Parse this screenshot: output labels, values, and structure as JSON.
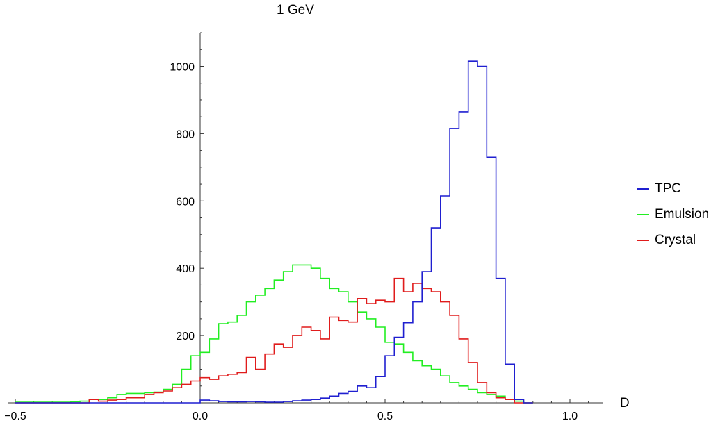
{
  "chart_data": {
    "type": "line",
    "title": "1 GeV",
    "xlabel": "D",
    "ylabel": "",
    "xlim": [
      -0.52,
      1.09
    ],
    "ylim": [
      0,
      1100
    ],
    "x_ticks": [
      -0.5,
      0.0,
      0.5,
      1.0
    ],
    "x_tick_labels": [
      "-0.5",
      "0.0",
      "0.5",
      "1.0"
    ],
    "y_ticks": [
      200,
      400,
      600,
      800,
      1000
    ],
    "y_tick_labels": [
      "200",
      "400",
      "600",
      "800",
      "1000"
    ],
    "legend": "right",
    "grid": false,
    "bin_width": 0.025,
    "series": [
      {
        "name": "TPC",
        "color": "#1f1fd0",
        "bins_start": -0.5,
        "values": [
          0,
          0,
          0,
          0,
          0,
          0,
          0,
          0,
          0,
          0,
          0,
          0,
          0,
          0,
          0,
          0,
          0,
          0,
          0,
          0,
          8,
          6,
          4,
          3,
          3,
          4,
          3,
          2,
          2,
          4,
          6,
          8,
          10,
          14,
          20,
          28,
          34,
          50,
          45,
          78,
          140,
          195,
          238,
          300,
          390,
          520,
          615,
          815,
          865,
          1015,
          1000,
          730,
          370,
          115,
          10,
          0
        ]
      },
      {
        "name": "Emulsion",
        "color": "#22ee22",
        "bins_start": -0.5,
        "values": [
          2,
          2,
          2,
          2,
          2,
          2,
          3,
          5,
          10,
          10,
          15,
          25,
          28,
          28,
          30,
          32,
          40,
          55,
          100,
          140,
          150,
          190,
          235,
          240,
          260,
          300,
          320,
          340,
          365,
          390,
          410,
          410,
          400,
          370,
          340,
          330,
          300,
          270,
          250,
          225,
          180,
          175,
          150,
          125,
          110,
          100,
          80,
          60,
          50,
          40,
          30,
          25,
          20,
          10,
          5,
          0
        ]
      },
      {
        "name": "Crystal",
        "color": "#e01c1c",
        "bins_start": -0.5,
        "values": [
          0,
          0,
          0,
          0,
          0,
          0,
          0,
          0,
          10,
          5,
          8,
          10,
          15,
          15,
          25,
          30,
          35,
          45,
          55,
          65,
          75,
          70,
          80,
          85,
          90,
          135,
          100,
          145,
          175,
          165,
          200,
          225,
          215,
          190,
          255,
          245,
          240,
          310,
          295,
          305,
          300,
          370,
          330,
          355,
          340,
          330,
          300,
          260,
          190,
          120,
          60,
          30,
          15,
          10,
          0,
          0
        ]
      }
    ]
  }
}
